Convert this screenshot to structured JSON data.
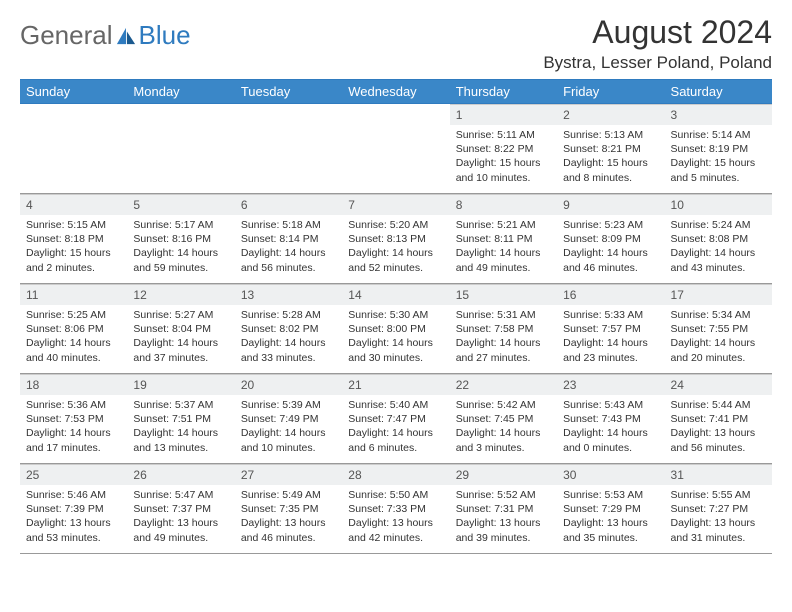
{
  "brand": {
    "general": "General",
    "blue": "Blue"
  },
  "title": "August 2024",
  "location": "Bystra, Lesser Poland, Poland",
  "colors": {
    "header_bg": "#3a87c8",
    "accent": "#2f7bbf"
  },
  "dayHeaders": [
    "Sunday",
    "Monday",
    "Tuesday",
    "Wednesday",
    "Thursday",
    "Friday",
    "Saturday"
  ],
  "weeks": [
    [
      null,
      null,
      null,
      null,
      {
        "n": "1",
        "sr": "5:11 AM",
        "ss": "8:22 PM",
        "dl": "15 hours and 10 minutes."
      },
      {
        "n": "2",
        "sr": "5:13 AM",
        "ss": "8:21 PM",
        "dl": "15 hours and 8 minutes."
      },
      {
        "n": "3",
        "sr": "5:14 AM",
        "ss": "8:19 PM",
        "dl": "15 hours and 5 minutes."
      }
    ],
    [
      {
        "n": "4",
        "sr": "5:15 AM",
        "ss": "8:18 PM",
        "dl": "15 hours and 2 minutes."
      },
      {
        "n": "5",
        "sr": "5:17 AM",
        "ss": "8:16 PM",
        "dl": "14 hours and 59 minutes."
      },
      {
        "n": "6",
        "sr": "5:18 AM",
        "ss": "8:14 PM",
        "dl": "14 hours and 56 minutes."
      },
      {
        "n": "7",
        "sr": "5:20 AM",
        "ss": "8:13 PM",
        "dl": "14 hours and 52 minutes."
      },
      {
        "n": "8",
        "sr": "5:21 AM",
        "ss": "8:11 PM",
        "dl": "14 hours and 49 minutes."
      },
      {
        "n": "9",
        "sr": "5:23 AM",
        "ss": "8:09 PM",
        "dl": "14 hours and 46 minutes."
      },
      {
        "n": "10",
        "sr": "5:24 AM",
        "ss": "8:08 PM",
        "dl": "14 hours and 43 minutes."
      }
    ],
    [
      {
        "n": "11",
        "sr": "5:25 AM",
        "ss": "8:06 PM",
        "dl": "14 hours and 40 minutes."
      },
      {
        "n": "12",
        "sr": "5:27 AM",
        "ss": "8:04 PM",
        "dl": "14 hours and 37 minutes."
      },
      {
        "n": "13",
        "sr": "5:28 AM",
        "ss": "8:02 PM",
        "dl": "14 hours and 33 minutes."
      },
      {
        "n": "14",
        "sr": "5:30 AM",
        "ss": "8:00 PM",
        "dl": "14 hours and 30 minutes."
      },
      {
        "n": "15",
        "sr": "5:31 AM",
        "ss": "7:58 PM",
        "dl": "14 hours and 27 minutes."
      },
      {
        "n": "16",
        "sr": "5:33 AM",
        "ss": "7:57 PM",
        "dl": "14 hours and 23 minutes."
      },
      {
        "n": "17",
        "sr": "5:34 AM",
        "ss": "7:55 PM",
        "dl": "14 hours and 20 minutes."
      }
    ],
    [
      {
        "n": "18",
        "sr": "5:36 AM",
        "ss": "7:53 PM",
        "dl": "14 hours and 17 minutes."
      },
      {
        "n": "19",
        "sr": "5:37 AM",
        "ss": "7:51 PM",
        "dl": "14 hours and 13 minutes."
      },
      {
        "n": "20",
        "sr": "5:39 AM",
        "ss": "7:49 PM",
        "dl": "14 hours and 10 minutes."
      },
      {
        "n": "21",
        "sr": "5:40 AM",
        "ss": "7:47 PM",
        "dl": "14 hours and 6 minutes."
      },
      {
        "n": "22",
        "sr": "5:42 AM",
        "ss": "7:45 PM",
        "dl": "14 hours and 3 minutes."
      },
      {
        "n": "23",
        "sr": "5:43 AM",
        "ss": "7:43 PM",
        "dl": "14 hours and 0 minutes."
      },
      {
        "n": "24",
        "sr": "5:44 AM",
        "ss": "7:41 PM",
        "dl": "13 hours and 56 minutes."
      }
    ],
    [
      {
        "n": "25",
        "sr": "5:46 AM",
        "ss": "7:39 PM",
        "dl": "13 hours and 53 minutes."
      },
      {
        "n": "26",
        "sr": "5:47 AM",
        "ss": "7:37 PM",
        "dl": "13 hours and 49 minutes."
      },
      {
        "n": "27",
        "sr": "5:49 AM",
        "ss": "7:35 PM",
        "dl": "13 hours and 46 minutes."
      },
      {
        "n": "28",
        "sr": "5:50 AM",
        "ss": "7:33 PM",
        "dl": "13 hours and 42 minutes."
      },
      {
        "n": "29",
        "sr": "5:52 AM",
        "ss": "7:31 PM",
        "dl": "13 hours and 39 minutes."
      },
      {
        "n": "30",
        "sr": "5:53 AM",
        "ss": "7:29 PM",
        "dl": "13 hours and 35 minutes."
      },
      {
        "n": "31",
        "sr": "5:55 AM",
        "ss": "7:27 PM",
        "dl": "13 hours and 31 minutes."
      }
    ]
  ],
  "labels": {
    "sunrise": "Sunrise:",
    "sunset": "Sunset:",
    "daylight": "Daylight:"
  }
}
